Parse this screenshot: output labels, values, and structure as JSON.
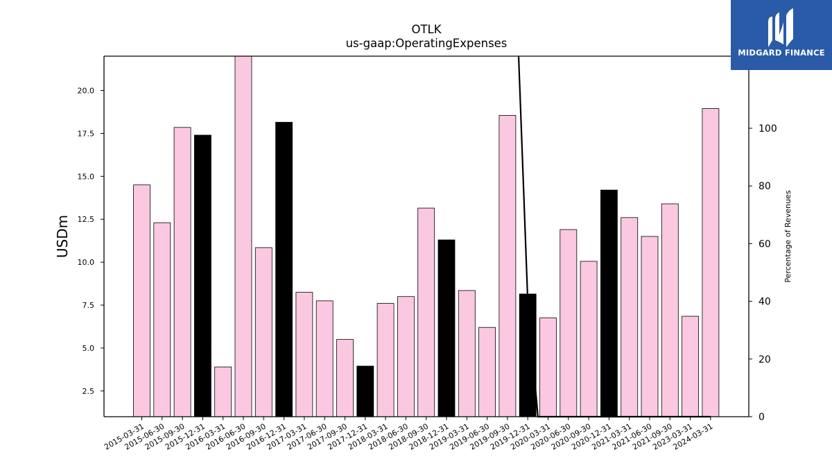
{
  "chart_data": {
    "type": "bar",
    "title": "OTLK",
    "subtitle": "us-gaap:OperatingExpenses",
    "ylabel": "USDm",
    "y2label": "Percentage of Revenues",
    "ylim": [
      1.0,
      22.0
    ],
    "y2lim": [
      0,
      125
    ],
    "yticks": [
      "2.5",
      "5.0",
      "7.5",
      "10.0",
      "12.5",
      "15.0",
      "17.5",
      "20.0"
    ],
    "y2ticks": [
      "0",
      "20",
      "40",
      "60",
      "80",
      "100"
    ],
    "categories": [
      "2015-03-31",
      "2015-06-30",
      "2015-09-30",
      "2015-12-31",
      "2016-03-31",
      "2016-06-30",
      "2016-09-30",
      "2016-12-31",
      "2017-03-31",
      "2017-06-30",
      "2017-09-30",
      "2017-12-31",
      "2018-03-31",
      "2018-06-30",
      "2018-09-30",
      "2018-12-31",
      "2019-03-31",
      "2019-06-30",
      "2019-09-30",
      "2019-12-31",
      "2020-03-31",
      "2020-06-30",
      "2020-09-30",
      "2020-12-31",
      "2021-03-31",
      "2021-06-30",
      "2021-09-30",
      "2023-03-31",
      "2024-03-31"
    ],
    "values": [
      14.5,
      12.3,
      17.85,
      17.4,
      3.9,
      22.0,
      10.85,
      18.15,
      8.25,
      7.75,
      5.5,
      3.95,
      7.6,
      8.0,
      13.15,
      11.3,
      8.35,
      6.2,
      18.55,
      8.15,
      6.75,
      11.9,
      10.05,
      14.2,
      12.6,
      11.5,
      13.4,
      6.85,
      18.95
    ],
    "bar_colors": [
      "#fbc8e2",
      "#fbc8e2",
      "#fbc8e2",
      "#000000",
      "#fbc8e2",
      "#fbc8e2",
      "#fbc8e2",
      "#000000",
      "#fbc8e2",
      "#fbc8e2",
      "#fbc8e2",
      "#000000",
      "#fbc8e2",
      "#fbc8e2",
      "#fbc8e2",
      "#000000",
      "#fbc8e2",
      "#fbc8e2",
      "#fbc8e2",
      "#000000",
      "#fbc8e2",
      "#fbc8e2",
      "#fbc8e2",
      "#000000",
      "#fbc8e2",
      "#fbc8e2",
      "#fbc8e2",
      "#fbc8e2",
      "#fbc8e2"
    ],
    "line_series": {
      "x_index": [
        18.55,
        19.0,
        19.5,
        20,
        21,
        22,
        23,
        24,
        25,
        26,
        27,
        28
      ],
      "values": [
        140,
        40,
        0,
        0,
        0,
        0,
        0,
        0,
        0,
        0,
        0,
        0
      ],
      "color": "#000000"
    },
    "grid": false
  },
  "logo": {
    "text": "MIDGARD FINANCE",
    "color": "#2a5ba8"
  }
}
